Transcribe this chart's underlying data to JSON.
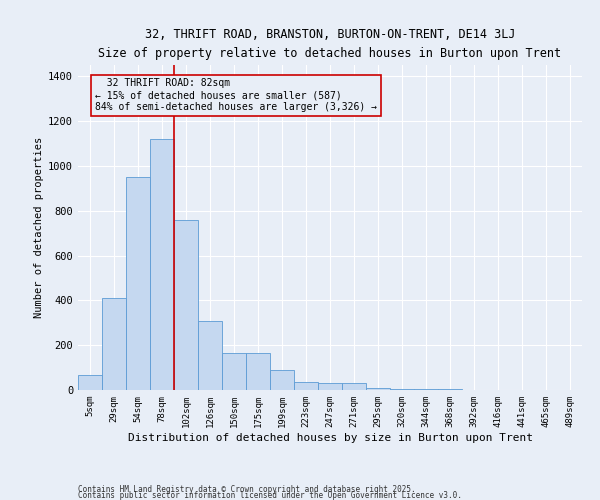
{
  "title": "32, THRIFT ROAD, BRANSTON, BURTON-ON-TRENT, DE14 3LJ",
  "subtitle": "Size of property relative to detached houses in Burton upon Trent",
  "xlabel": "Distribution of detached houses by size in Burton upon Trent",
  "ylabel": "Number of detached properties",
  "footnote1": "Contains HM Land Registry data © Crown copyright and database right 2025.",
  "footnote2": "Contains public sector information licensed under the Open Government Licence v3.0.",
  "bar_color": "#c5d8f0",
  "bar_edge_color": "#5b9bd5",
  "bg_color": "#e8eef7",
  "grid_color": "#ffffff",
  "vline_color": "#cc0000",
  "vline_x": 3.5,
  "annotation_text": "  32 THRIFT ROAD: 82sqm\n← 15% of detached houses are smaller (587)\n84% of semi-detached houses are larger (3,326) →",
  "annotation_box_color": "#cc0000",
  "categories": [
    "5sqm",
    "29sqm",
    "54sqm",
    "78sqm",
    "102sqm",
    "126sqm",
    "150sqm",
    "175sqm",
    "199sqm",
    "223sqm",
    "247sqm",
    "271sqm",
    "295sqm",
    "320sqm",
    "344sqm",
    "368sqm",
    "392sqm",
    "416sqm",
    "441sqm",
    "465sqm",
    "489sqm"
  ],
  "values": [
    65,
    410,
    950,
    1120,
    760,
    310,
    165,
    165,
    90,
    35,
    30,
    30,
    10,
    5,
    5,
    5,
    2,
    0,
    0,
    0,
    0
  ],
  "ylim": [
    0,
    1450
  ],
  "yticks": [
    0,
    200,
    400,
    600,
    800,
    1000,
    1200,
    1400
  ]
}
